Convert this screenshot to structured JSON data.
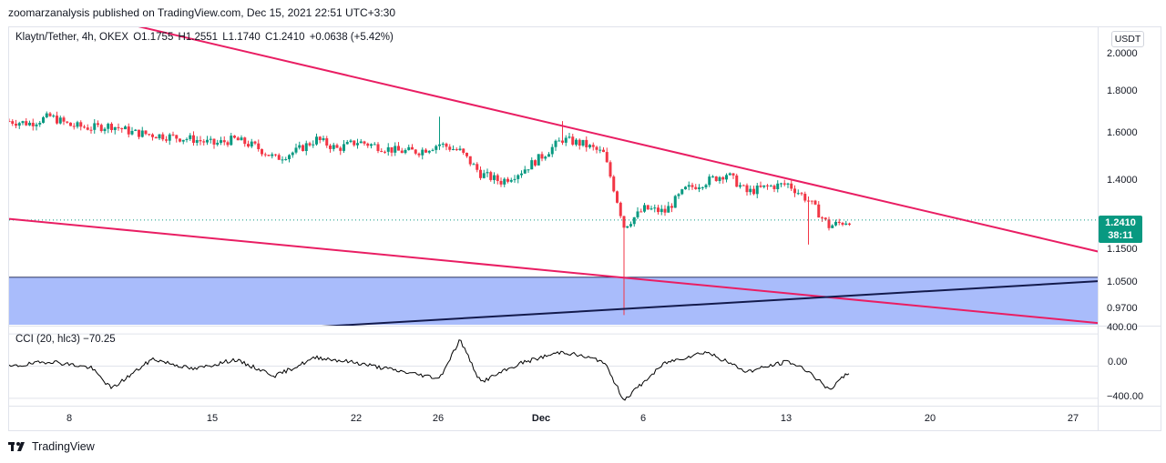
{
  "header": {
    "published_line": "zoomarzanalysis published on TradingView.com, Dec 15, 2021 22:51 UTC+3:30"
  },
  "legend": {
    "symbol": "Klaytn/Tether, 4h, OKEX",
    "open": "O1.1755",
    "high": "H1.2551",
    "low": "L1.1740",
    "close": "C1.2410",
    "change": "+0.0638 (+5.42%)"
  },
  "cci_legend": {
    "label": "CCI (20, hlc3)",
    "value": "−70.25"
  },
  "unit": "USDT",
  "price_tag": {
    "price": "1.2410",
    "countdown": "38:11"
  },
  "price_axis": [
    "2.0000",
    "1.8000",
    "1.6000",
    "1.4000",
    "1.1500",
    "1.0500",
    "0.9700"
  ],
  "cci_axis": [
    "400.00",
    "0.00",
    "−400.00"
  ],
  "time_axis": [
    "8",
    "15",
    "22",
    "26",
    "Dec",
    "6",
    "13",
    "20",
    "27"
  ],
  "brand": {
    "name": "TradingView"
  },
  "colors": {
    "up": "#089981",
    "down": "#f23645",
    "trendline": "#e91e63",
    "support_line": "#131a4c",
    "zone_fill": "#a9bcfb",
    "cci_line": "#000000"
  },
  "chart_data": {
    "type": "candlestick",
    "interval": "4h",
    "pair": "Klaytn/Tether",
    "exchange": "OKEX",
    "y_scale": "log",
    "ylim": [
      0.93,
      2.1
    ],
    "x_range": [
      "2021-11-04",
      "2021-12-29"
    ],
    "last_close": 1.241,
    "close_path": [
      {
        "date": "2021-11-04",
        "close": 1.63
      },
      {
        "date": "2021-11-05",
        "close": 1.62
      },
      {
        "date": "2021-11-06",
        "close": 1.65
      },
      {
        "date": "2021-11-07",
        "close": 1.61
      },
      {
        "date": "2021-11-08",
        "close": 1.6
      },
      {
        "date": "2021-11-09",
        "close": 1.61
      },
      {
        "date": "2021-11-10",
        "close": 1.58
      },
      {
        "date": "2021-11-11",
        "close": 1.57
      },
      {
        "date": "2021-11-12",
        "close": 1.56
      },
      {
        "date": "2021-11-13",
        "close": 1.55
      },
      {
        "date": "2021-11-14",
        "close": 1.53
      },
      {
        "date": "2021-11-15",
        "close": 1.55
      },
      {
        "date": "2021-11-16",
        "close": 1.52
      },
      {
        "date": "2021-11-17",
        "close": 1.47
      },
      {
        "date": "2021-11-18",
        "close": 1.5
      },
      {
        "date": "2021-11-19",
        "close": 1.55
      },
      {
        "date": "2021-11-20",
        "close": 1.51
      },
      {
        "date": "2021-11-21",
        "close": 1.54
      },
      {
        "date": "2021-11-22",
        "close": 1.52
      },
      {
        "date": "2021-11-23",
        "close": 1.5
      },
      {
        "date": "2021-11-24",
        "close": 1.5
      },
      {
        "date": "2021-11-25",
        "close": 1.53
      },
      {
        "date": "2021-11-26",
        "close": 1.5
      },
      {
        "date": "2021-11-27",
        "close": 1.41
      },
      {
        "date": "2021-11-28",
        "close": 1.38
      },
      {
        "date": "2021-11-29",
        "close": 1.42
      },
      {
        "date": "2021-11-30",
        "close": 1.48
      },
      {
        "date": "2021-12-01",
        "close": 1.55
      },
      {
        "date": "2021-12-02",
        "close": 1.53
      },
      {
        "date": "2021-12-03",
        "close": 1.49
      },
      {
        "date": "2021-12-04",
        "close": 1.22
      },
      {
        "date": "2021-12-05",
        "close": 1.28
      },
      {
        "date": "2021-12-06",
        "close": 1.27
      },
      {
        "date": "2021-12-07",
        "close": 1.35
      },
      {
        "date": "2021-12-08",
        "close": 1.38
      },
      {
        "date": "2021-12-09",
        "close": 1.41
      },
      {
        "date": "2021-12-10",
        "close": 1.34
      },
      {
        "date": "2021-12-11",
        "close": 1.36
      },
      {
        "date": "2021-12-12",
        "close": 1.37
      },
      {
        "date": "2021-12-13",
        "close": 1.31
      },
      {
        "date": "2021-12-14",
        "close": 1.22
      },
      {
        "date": "2021-12-15",
        "close": 1.24
      }
    ],
    "wick_extremes": [
      {
        "date": "2021-11-25",
        "high": 1.65
      },
      {
        "date": "2021-12-01",
        "high": 1.63
      },
      {
        "date": "2021-12-04",
        "low": 0.955
      },
      {
        "date": "2021-12-13",
        "low": 1.16
      }
    ],
    "drawings": [
      {
        "kind": "trendline",
        "color": "#e91e63",
        "from": {
          "date": "2021-11-04",
          "price": 2.3
        },
        "to": {
          "date": "2021-12-29",
          "price": 1.11
        }
      },
      {
        "kind": "trendline",
        "color": "#e91e63",
        "from": {
          "date": "2021-11-04",
          "price": 1.245
        },
        "to": {
          "date": "2021-12-29",
          "price": 0.925
        }
      },
      {
        "kind": "trendline",
        "color": "#131a4c",
        "from": {
          "date": "2021-11-04",
          "price": 0.88
        },
        "to": {
          "date": "2021-12-29",
          "price": 1.055
        }
      },
      {
        "kind": "zone",
        "color": "#a9bcfb",
        "price_from": 0.93,
        "price_to": 1.06
      }
    ],
    "indicator": {
      "name": "CCI",
      "params": "20, hlc3",
      "ylim": [
        -480,
        480
      ],
      "last_value": -70.25,
      "path": [
        {
          "date": "2021-11-04",
          "value": -10
        },
        {
          "date": "2021-11-06",
          "value": 60
        },
        {
          "date": "2021-11-08",
          "value": -20
        },
        {
          "date": "2021-11-09",
          "value": -280
        },
        {
          "date": "2021-11-11",
          "value": 90
        },
        {
          "date": "2021-11-13",
          "value": -40
        },
        {
          "date": "2021-11-15",
          "value": 80
        },
        {
          "date": "2021-11-17",
          "value": -120
        },
        {
          "date": "2021-11-19",
          "value": 110
        },
        {
          "date": "2021-11-21",
          "value": 40
        },
        {
          "date": "2021-11-23",
          "value": -60
        },
        {
          "date": "2021-11-25",
          "value": -150
        },
        {
          "date": "2021-11-26",
          "value": 330
        },
        {
          "date": "2021-11-27",
          "value": -200
        },
        {
          "date": "2021-11-29",
          "value": 40
        },
        {
          "date": "2021-12-01",
          "value": 180
        },
        {
          "date": "2021-12-03",
          "value": 60
        },
        {
          "date": "2021-12-04",
          "value": -420
        },
        {
          "date": "2021-12-06",
          "value": 40
        },
        {
          "date": "2021-12-08",
          "value": 180
        },
        {
          "date": "2021-12-10",
          "value": -70
        },
        {
          "date": "2021-12-12",
          "value": 60
        },
        {
          "date": "2021-12-13",
          "value": -60
        },
        {
          "date": "2021-12-14",
          "value": -300
        },
        {
          "date": "2021-12-15",
          "value": -70
        }
      ]
    }
  }
}
